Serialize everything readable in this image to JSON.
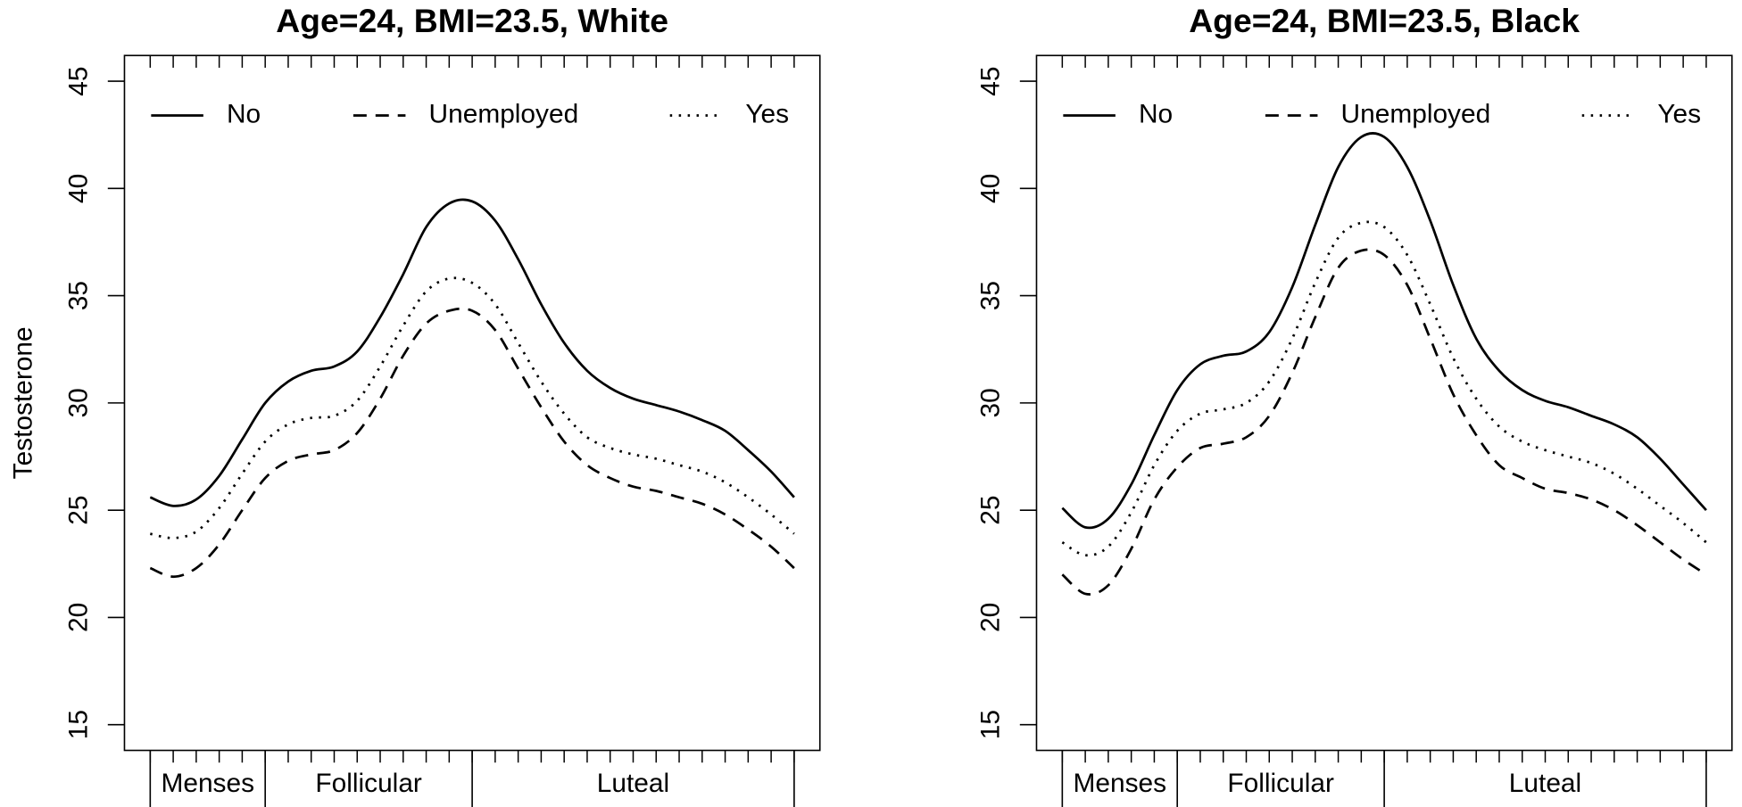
{
  "chart_data": [
    {
      "type": "line",
      "title": "Age=24, BMI=23.5, White",
      "ylabel": "Testosterone",
      "x": [
        0,
        1,
        2,
        3,
        4,
        5,
        6,
        7,
        8,
        9,
        10,
        11,
        12,
        13,
        14,
        15,
        16,
        17,
        18,
        19,
        20,
        21,
        22,
        23,
        24,
        25,
        26,
        27,
        28
      ],
      "xlim": [
        -1.12,
        29.12
      ],
      "xticks": [
        0,
        1,
        2,
        3,
        4,
        5,
        6,
        7,
        8,
        9,
        10,
        11,
        12,
        13,
        14,
        15,
        16,
        17,
        18,
        19,
        20,
        21,
        22,
        23,
        24,
        25,
        26,
        27,
        28
      ],
      "ylim": [
        13.8,
        46.2
      ],
      "yticks": [
        15,
        20,
        25,
        30,
        35,
        40,
        45
      ],
      "phases": [
        {
          "name": "Menses",
          "start": 0,
          "end": 5
        },
        {
          "name": "Follicular",
          "start": 5,
          "end": 14
        },
        {
          "name": "Luteal",
          "start": 14,
          "end": 28
        }
      ],
      "legend": "top",
      "series": [
        {
          "name": "No",
          "color": "#000000",
          "dash": "solid",
          "values": [
            25.6,
            25.2,
            25.5,
            26.6,
            28.3,
            30.0,
            31.0,
            31.5,
            31.7,
            32.4,
            34.0,
            36.0,
            38.2,
            39.3,
            39.4,
            38.5,
            36.7,
            34.6,
            32.8,
            31.5,
            30.7,
            30.2,
            29.9,
            29.6,
            29.2,
            28.7,
            27.8,
            26.8,
            25.6
          ]
        },
        {
          "name": "Unemployed",
          "color": "#000000",
          "dash": "dashed",
          "values": [
            22.3,
            21.9,
            22.3,
            23.4,
            25.0,
            26.5,
            27.3,
            27.6,
            27.8,
            28.6,
            30.2,
            32.2,
            33.7,
            34.3,
            34.3,
            33.4,
            31.6,
            29.8,
            28.2,
            27.1,
            26.5,
            26.1,
            25.9,
            25.6,
            25.3,
            24.8,
            24.1,
            23.3,
            22.3
          ]
        },
        {
          "name": "Yes",
          "color": "#000000",
          "dash": "dotted",
          "values": [
            23.9,
            23.7,
            24.0,
            25.1,
            26.7,
            28.2,
            29.0,
            29.3,
            29.4,
            30.1,
            31.7,
            33.6,
            35.2,
            35.8,
            35.6,
            34.6,
            32.8,
            31.0,
            29.5,
            28.4,
            27.9,
            27.6,
            27.4,
            27.1,
            26.8,
            26.3,
            25.6,
            24.8,
            23.9
          ]
        }
      ]
    },
    {
      "type": "line",
      "title": "Age=24, BMI=23.5, Black",
      "x": [
        0,
        1,
        2,
        3,
        4,
        5,
        6,
        7,
        8,
        9,
        10,
        11,
        12,
        13,
        14,
        15,
        16,
        17,
        18,
        19,
        20,
        21,
        22,
        23,
        24,
        25,
        26,
        27,
        28
      ],
      "xlim": [
        -1.12,
        29.12
      ],
      "xticks": [
        0,
        1,
        2,
        3,
        4,
        5,
        6,
        7,
        8,
        9,
        10,
        11,
        12,
        13,
        14,
        15,
        16,
        17,
        18,
        19,
        20,
        21,
        22,
        23,
        24,
        25,
        26,
        27,
        28
      ],
      "ylim": [
        13.8,
        46.2
      ],
      "yticks": [
        15,
        20,
        25,
        30,
        35,
        40,
        45
      ],
      "phases": [
        {
          "name": "Menses",
          "start": 0,
          "end": 5
        },
        {
          "name": "Follicular",
          "start": 5,
          "end": 14
        },
        {
          "name": "Luteal",
          "start": 14,
          "end": 28
        }
      ],
      "legend": "top",
      "series": [
        {
          "name": "No",
          "color": "#000000",
          "dash": "solid",
          "values": [
            25.1,
            24.2,
            24.6,
            26.2,
            28.5,
            30.6,
            31.8,
            32.2,
            32.4,
            33.3,
            35.4,
            38.3,
            41.0,
            42.4,
            42.4,
            41.0,
            38.5,
            35.5,
            33.0,
            31.5,
            30.6,
            30.1,
            29.8,
            29.4,
            29.0,
            28.4,
            27.4,
            26.2,
            25.0
          ]
        },
        {
          "name": "Unemployed",
          "color": "#000000",
          "dash": "dashed",
          "values": [
            22.0,
            21.1,
            21.5,
            23.2,
            25.5,
            27.0,
            27.9,
            28.1,
            28.4,
            29.4,
            31.4,
            34.0,
            36.3,
            37.1,
            36.9,
            35.5,
            33.0,
            30.4,
            28.5,
            27.1,
            26.5,
            26.0,
            25.8,
            25.5,
            25.0,
            24.3,
            23.5,
            22.7,
            22.0
          ]
        },
        {
          "name": "Yes",
          "color": "#000000",
          "dash": "dotted",
          "values": [
            23.5,
            22.9,
            23.3,
            24.9,
            27.1,
            28.7,
            29.5,
            29.7,
            30.0,
            31.0,
            33.0,
            35.6,
            37.7,
            38.4,
            38.2,
            36.9,
            34.6,
            32.1,
            30.2,
            28.9,
            28.2,
            27.8,
            27.5,
            27.2,
            26.7,
            26.0,
            25.2,
            24.4,
            23.5
          ]
        }
      ]
    }
  ]
}
